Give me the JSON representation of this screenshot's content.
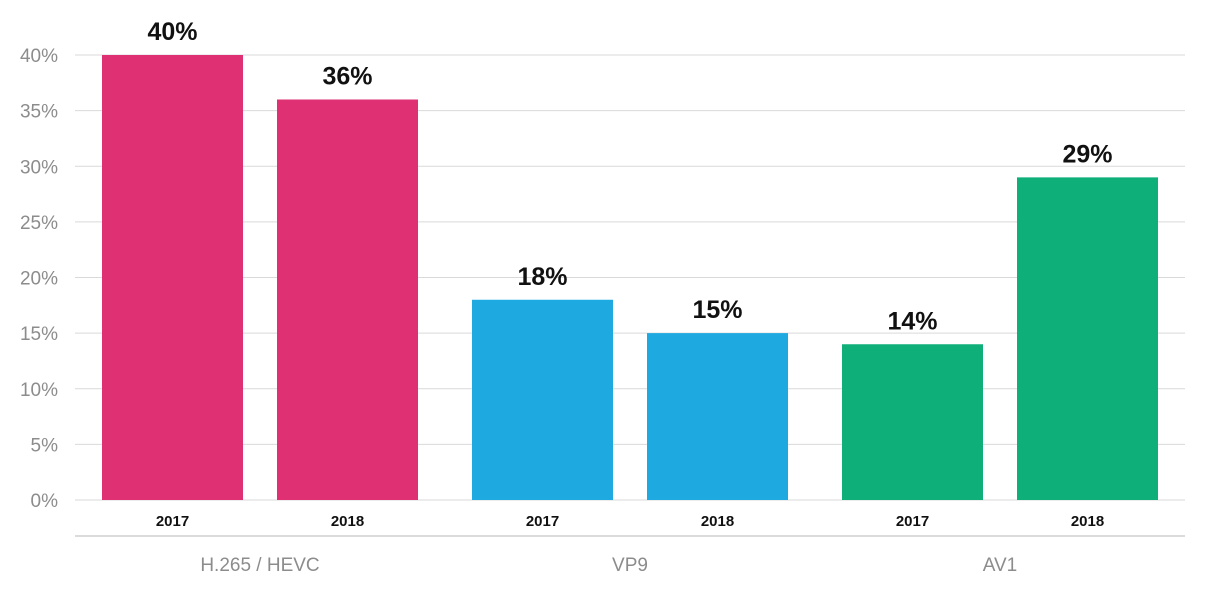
{
  "chart_data": {
    "type": "bar",
    "y_unit_suffix": "%",
    "ylim": [
      0,
      40
    ],
    "yticks": [
      0,
      5,
      10,
      15,
      20,
      25,
      30,
      35,
      40
    ],
    "grid": true,
    "legend": "none",
    "groups": [
      {
        "name": "H.265 / HEVC",
        "color": "#de3072",
        "bars": [
          {
            "category": "2017",
            "value": 40,
            "label": "40%"
          },
          {
            "category": "2018",
            "value": 36,
            "label": "36%"
          }
        ]
      },
      {
        "name": "VP9",
        "color": "#1ea9e1",
        "bars": [
          {
            "category": "2017",
            "value": 18,
            "label": "18%"
          },
          {
            "category": "2018",
            "value": 15,
            "label": "15%"
          }
        ]
      },
      {
        "name": "AV1",
        "color": "#0faf7a",
        "bars": [
          {
            "category": "2017",
            "value": 14,
            "label": "14%"
          },
          {
            "category": "2018",
            "value": 29,
            "label": "29%"
          }
        ]
      }
    ]
  }
}
